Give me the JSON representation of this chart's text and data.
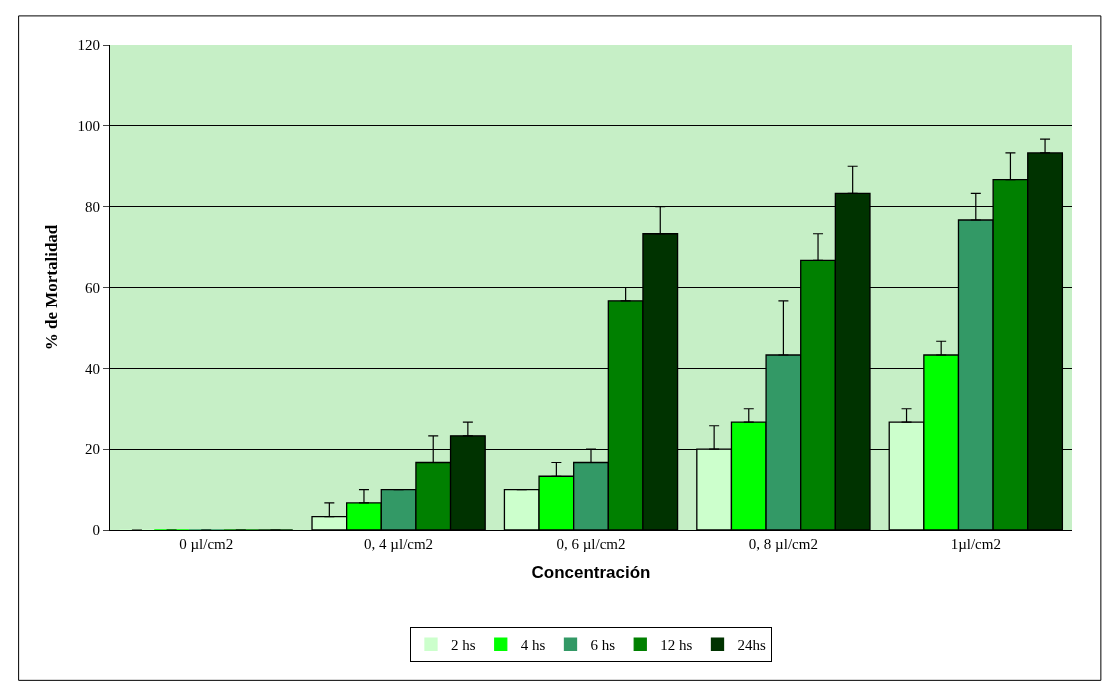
{
  "chart_data": {
    "type": "bar",
    "xlabel": "Concentración",
    "ylabel": "% de Mortalidad",
    "categories": [
      "0 µl/cm2",
      "0, 4 µl/cm2",
      "0, 6 µl/cm2",
      "0, 8 µl/cm2",
      "1µl/cm2"
    ],
    "series": [
      {
        "name": "2 hs",
        "color": "#ccffcc",
        "values": [
          0,
          3.3,
          10,
          20,
          26.7
        ],
        "errors": [
          null,
          [
            3.3,
            6.7
          ],
          null,
          [
            20,
            25.8
          ],
          [
            26.7,
            30
          ]
        ]
      },
      {
        "name": "4 hs",
        "color": "#00ff00",
        "values": [
          0,
          6.7,
          13.3,
          26.7,
          43.3
        ],
        "errors": [
          null,
          [
            6.7,
            10
          ],
          [
            13.3,
            16.7
          ],
          [
            26.7,
            30
          ],
          [
            43.3,
            46.7
          ]
        ]
      },
      {
        "name": "6 hs",
        "color": "#339966",
        "values": [
          0,
          10,
          16.7,
          43.3,
          76.7
        ],
        "errors": [
          null,
          null,
          [
            16.7,
            20
          ],
          [
            43.3,
            56.7
          ],
          [
            76.7,
            83.3
          ]
        ]
      },
      {
        "name": "12 hs",
        "color": "#008000",
        "values": [
          0,
          16.7,
          56.7,
          66.7,
          86.7
        ],
        "errors": [
          null,
          [
            16.7,
            23.3
          ],
          [
            56.7,
            60
          ],
          [
            66.7,
            73.3
          ],
          [
            86.7,
            93.3
          ]
        ]
      },
      {
        "name": "24hs",
        "color": "#003300",
        "values": [
          0,
          23.3,
          73.3,
          83.3,
          93.3
        ],
        "errors": [
          null,
          [
            23.3,
            26.7
          ],
          [
            73.3,
            80
          ],
          [
            83.3,
            90
          ],
          [
            93.3,
            96.7
          ]
        ]
      }
    ],
    "ylim": [
      0,
      120
    ],
    "yticks": [
      0,
      20,
      40,
      60,
      80,
      100,
      120
    ],
    "grid": "y",
    "legend": "bottom"
  }
}
